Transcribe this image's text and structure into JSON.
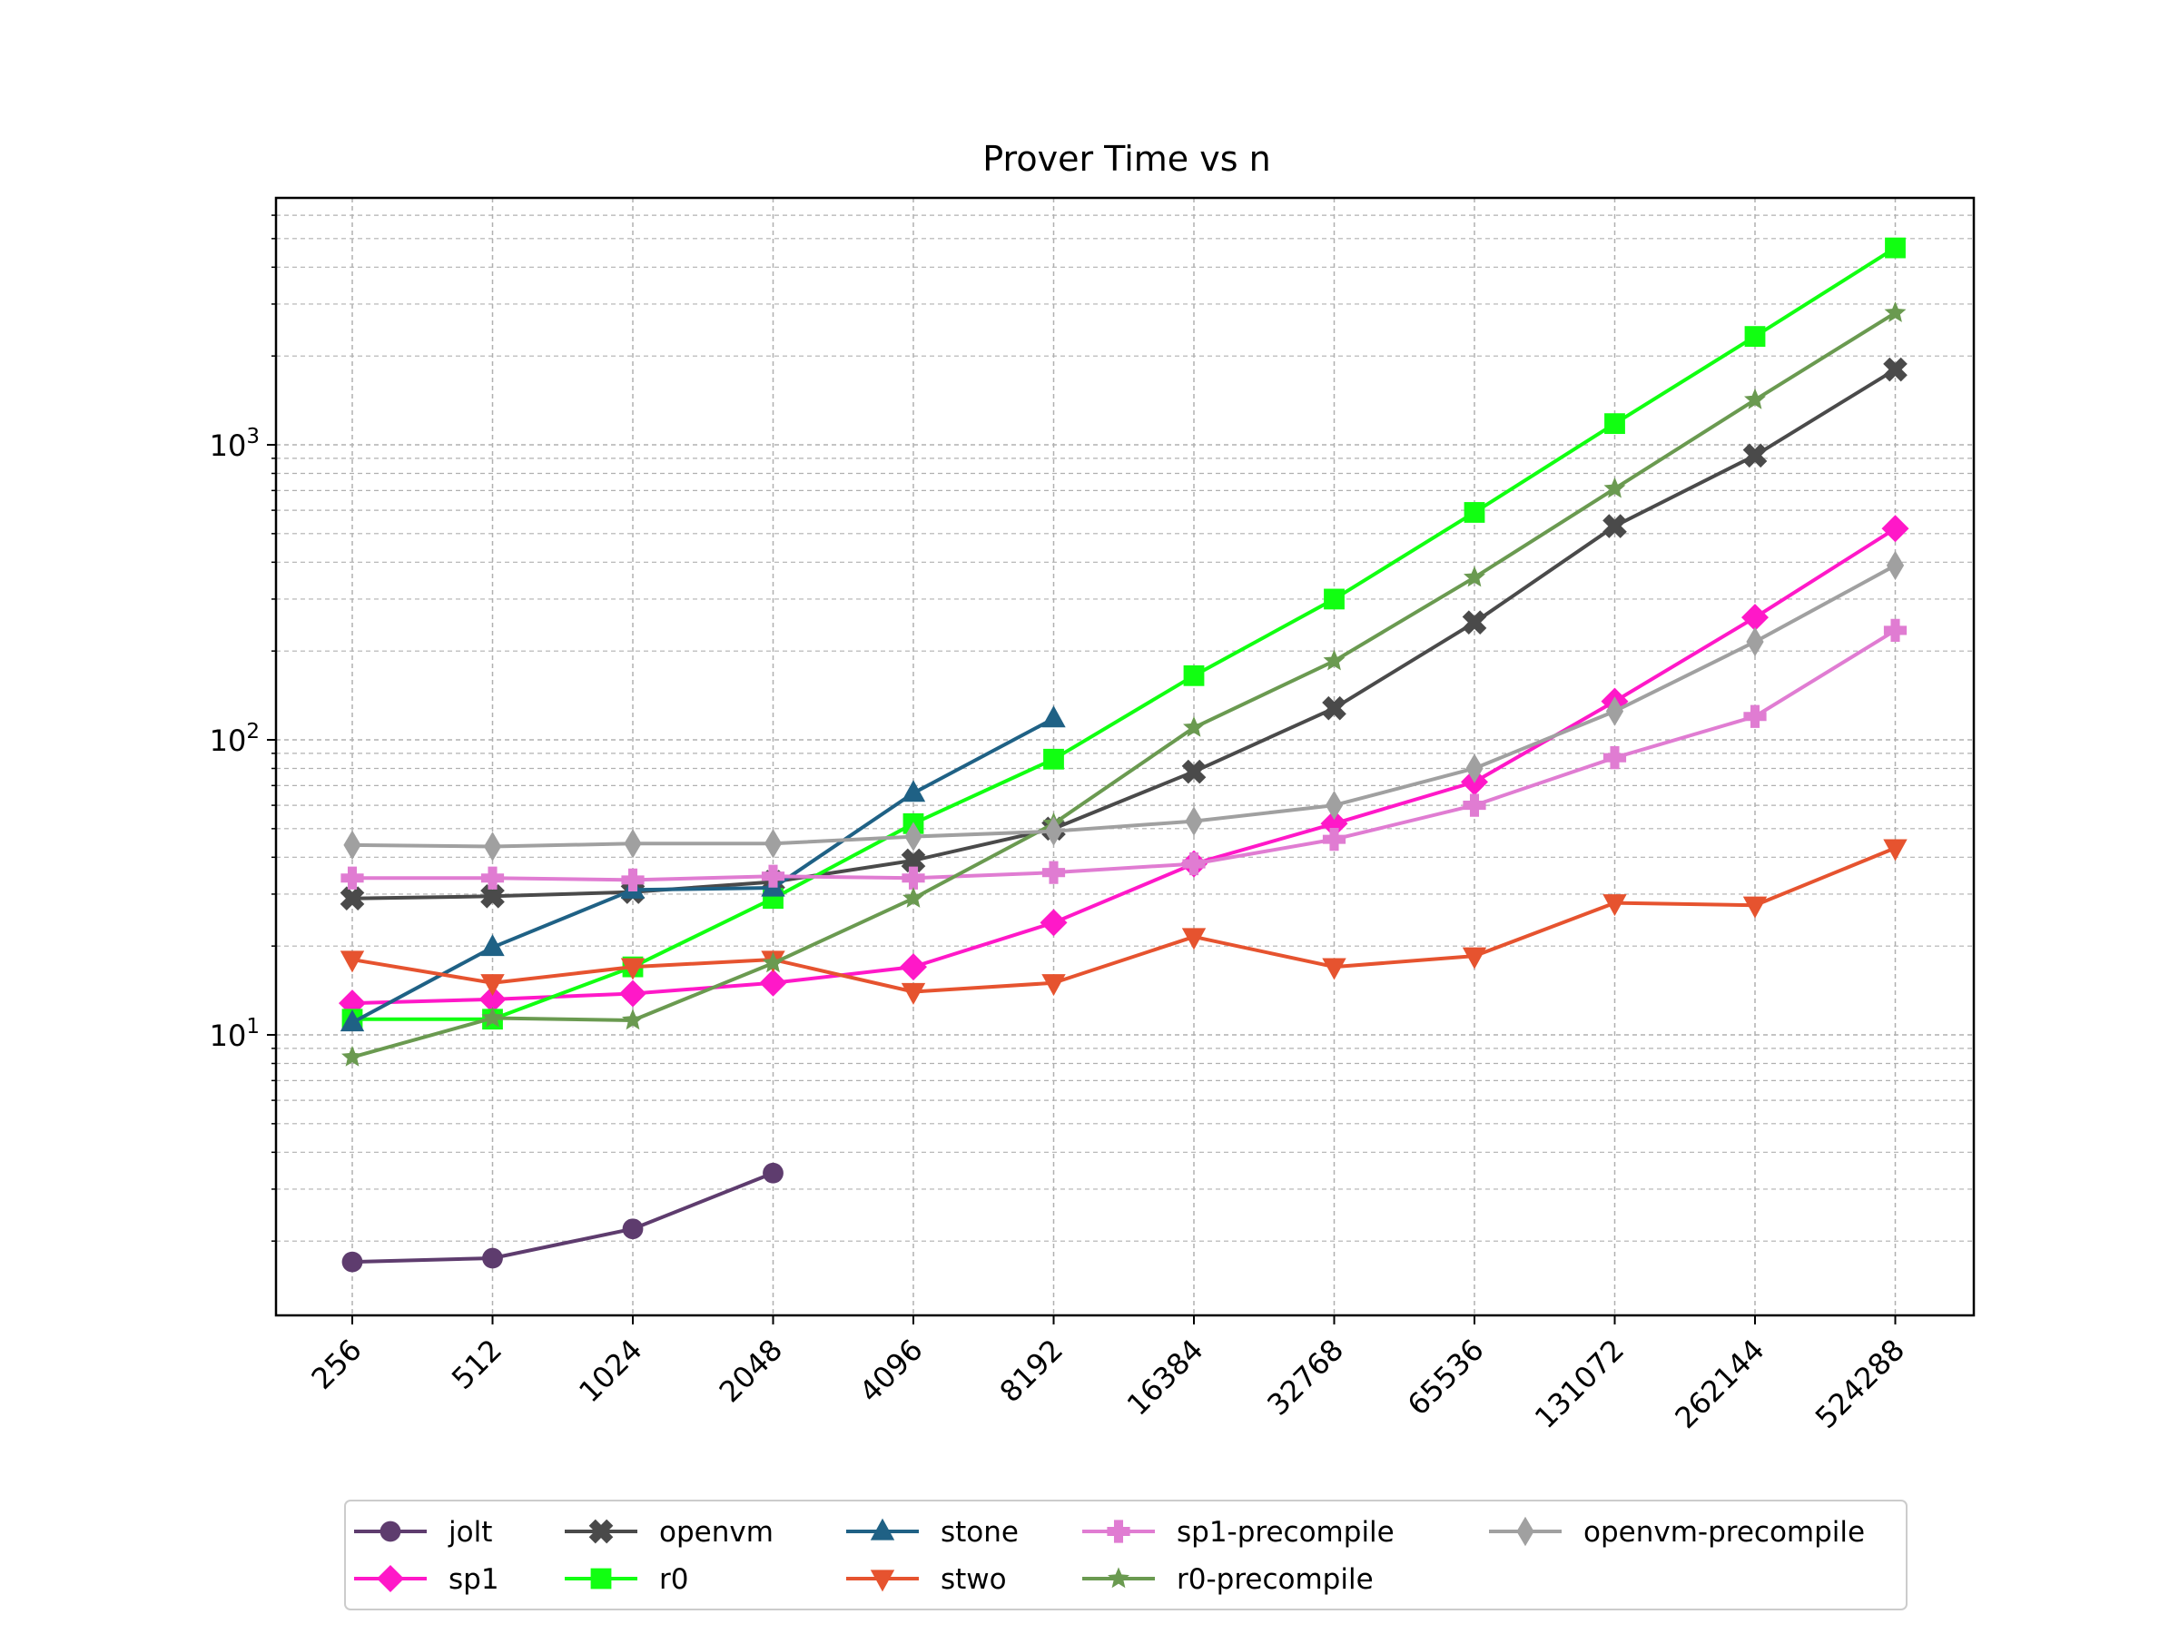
{
  "chart_data": {
    "type": "line",
    "title": "Prover Time vs n",
    "xlabel": "",
    "ylabel": "",
    "y_scale": "log",
    "ylim": [
      1.3,
      7000
    ],
    "categories": [
      "256",
      "512",
      "1024",
      "2048",
      "4096",
      "8192",
      "16384",
      "32768",
      "65536",
      "131072",
      "262144",
      "524288"
    ],
    "y_ticks": [
      {
        "base": "10",
        "exp": "1",
        "value": 10
      },
      {
        "base": "10",
        "exp": "2",
        "value": 100
      },
      {
        "base": "10",
        "exp": "3",
        "value": 1000
      }
    ],
    "grid": true,
    "legend_position": "bottom-center",
    "series": [
      {
        "name": "jolt",
        "color": "#5e3c6e",
        "marker": "circle",
        "values": [
          1.7,
          1.75,
          2.2,
          3.4,
          null,
          null,
          null,
          null,
          null,
          null,
          null,
          null
        ]
      },
      {
        "name": "sp1",
        "color": "#ff18c8",
        "marker": "diamond",
        "values": [
          12.8,
          13.2,
          13.8,
          15.0,
          17.0,
          24.0,
          38.0,
          52.0,
          72.0,
          135.0,
          260.0,
          520.0
        ]
      },
      {
        "name": "openvm",
        "color": "#4a4a4a",
        "marker": "x",
        "values": [
          29.0,
          29.5,
          30.5,
          33.0,
          39.0,
          50.0,
          78.0,
          128.0,
          250.0,
          530.0,
          920.0,
          1800.0
        ]
      },
      {
        "name": "r0",
        "color": "#11ff11",
        "marker": "square",
        "values": [
          11.3,
          11.3,
          17.0,
          29.0,
          52.0,
          86.0,
          165.0,
          300.0,
          590.0,
          1180.0,
          2330.0,
          4650.0
        ]
      },
      {
        "name": "stone",
        "color": "#1f6185",
        "marker": "triangle-up",
        "values": [
          11.0,
          19.8,
          31.0,
          31.5,
          66.0,
          118.0,
          null,
          null,
          null,
          null,
          null,
          null
        ]
      },
      {
        "name": "stwo",
        "color": "#e6532f",
        "marker": "triangle-down",
        "values": [
          18.0,
          15.0,
          17.0,
          18.0,
          14.0,
          15.0,
          21.5,
          17.0,
          18.5,
          28.0,
          27.5,
          43.0
        ]
      },
      {
        "name": "sp1-precompile",
        "color": "#e07cd2",
        "marker": "plus",
        "values": [
          34.0,
          34.0,
          33.5,
          34.5,
          34.0,
          35.5,
          38.0,
          46.0,
          60.0,
          87.0,
          120.0,
          235.0
        ]
      },
      {
        "name": "r0-precompile",
        "color": "#6a9a50",
        "marker": "star",
        "values": [
          8.4,
          11.4,
          11.2,
          17.5,
          29.0,
          52.0,
          110.0,
          185.0,
          355.0,
          710.0,
          1420.0,
          2800.0
        ]
      },
      {
        "name": "openvm-precompile",
        "color": "#a0a0a0",
        "marker": "thin-diamond",
        "values": [
          44.0,
          43.5,
          44.5,
          44.5,
          47.0,
          49.0,
          53.0,
          60.0,
          80.0,
          125.0,
          215.0,
          390.0
        ]
      }
    ]
  }
}
